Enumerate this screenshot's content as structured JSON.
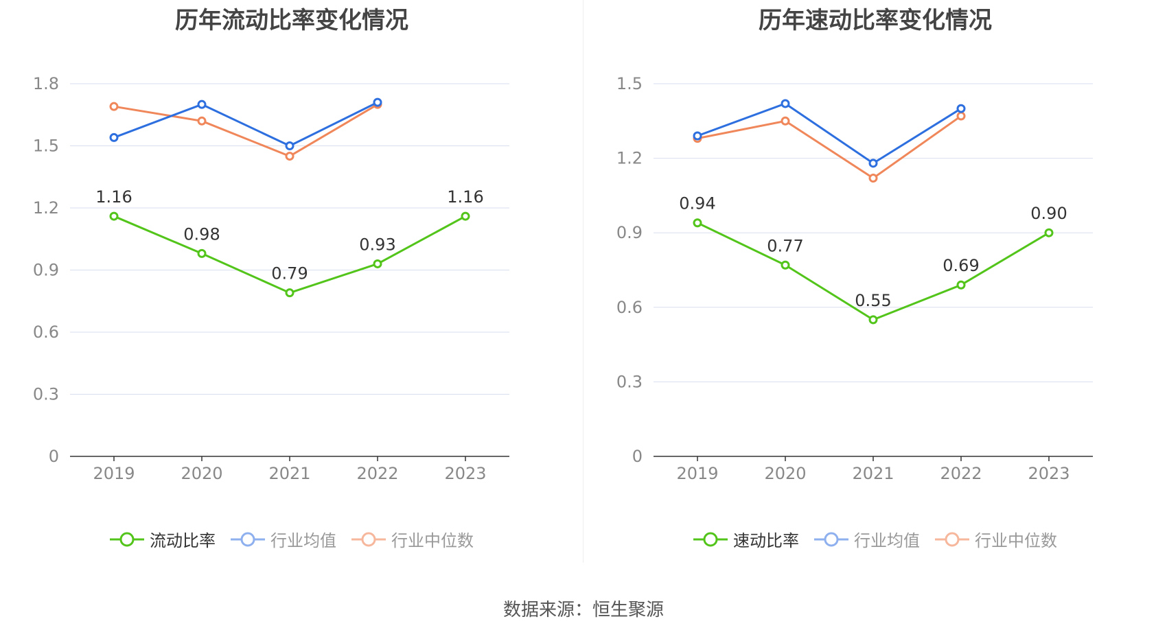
{
  "footer": {
    "source_text": "数据来源：恒生聚源"
  },
  "colors": {
    "company": "#52c41a",
    "average": "#2e6fdf",
    "median": "#f0875a",
    "grid": "#d9deef",
    "axis": "#333333",
    "tick": "#888888"
  },
  "chart_data": [
    {
      "type": "line",
      "title": "历年流动比率变化情况",
      "categories": [
        "2019",
        "2020",
        "2021",
        "2022",
        "2023"
      ],
      "y_ticks": [
        "0",
        "0.3",
        "0.6",
        "0.9",
        "1.2",
        "1.5",
        "1.8"
      ],
      "ylim": [
        0,
        1.8
      ],
      "grid": true,
      "legend_position": "bottom",
      "series": [
        {
          "name": "流动比率",
          "key": "company",
          "values": [
            1.16,
            0.98,
            0.79,
            0.93,
            1.16
          ],
          "labels": [
            "1.16",
            "0.98",
            "0.79",
            "0.93",
            "1.16"
          ]
        },
        {
          "name": "行业均值",
          "key": "average",
          "values": [
            1.54,
            1.7,
            1.5,
            1.71,
            null
          ]
        },
        {
          "name": "行业中位数",
          "key": "median",
          "values": [
            1.69,
            1.62,
            1.45,
            1.7,
            null
          ]
        }
      ]
    },
    {
      "type": "line",
      "title": "历年速动比率变化情况",
      "categories": [
        "2019",
        "2020",
        "2021",
        "2022",
        "2023"
      ],
      "y_ticks": [
        "0",
        "0.3",
        "0.6",
        "0.9",
        "1.2",
        "1.5"
      ],
      "ylim": [
        0,
        1.5
      ],
      "grid": true,
      "legend_position": "bottom",
      "series": [
        {
          "name": "速动比率",
          "key": "company",
          "values": [
            0.94,
            0.77,
            0.55,
            0.69,
            0.9
          ],
          "labels": [
            "0.94",
            "0.77",
            "0.55",
            "0.69",
            "0.90"
          ]
        },
        {
          "name": "行业均值",
          "key": "average",
          "values": [
            1.29,
            1.42,
            1.18,
            1.4,
            null
          ]
        },
        {
          "name": "行业中位数",
          "key": "median",
          "values": [
            1.28,
            1.35,
            1.12,
            1.37,
            null
          ]
        }
      ]
    }
  ]
}
